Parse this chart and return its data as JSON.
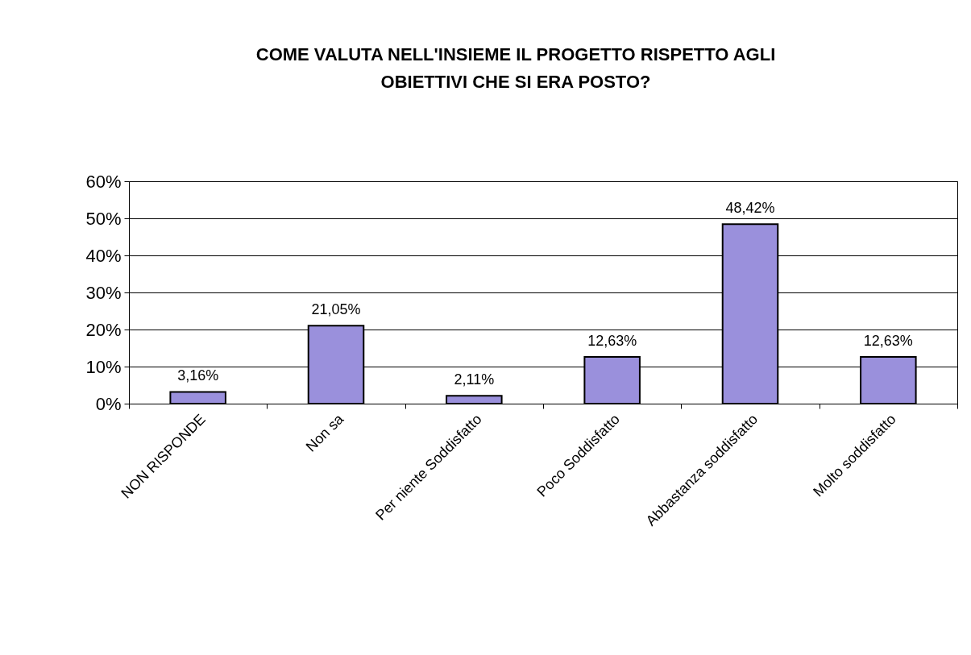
{
  "chart_data": {
    "type": "bar",
    "title": "COME VALUTA NELL'INSIEME IL PROGETTO RISPETTO AGLI\nOBIETTIVI CHE SI ERA POSTO?",
    "categories": [
      "NON RISPONDE",
      "Non sa",
      "Per niente Soddisfatto",
      "Poco Soddisfatto",
      "Abbastanza soddisfatto",
      "Molto soddisfatto"
    ],
    "values": [
      3.16,
      21.05,
      2.11,
      12.63,
      48.42,
      12.63
    ],
    "value_labels": [
      "3,16%",
      "21,05%",
      "2,11%",
      "12,63%",
      "48,42%",
      "12,63%"
    ],
    "color": "#9a90dc",
    "ylim": [
      0,
      60
    ],
    "yticks": [
      {
        "value": 0,
        "label": "0%"
      },
      {
        "value": 10,
        "label": "10%"
      },
      {
        "value": 20,
        "label": "20%"
      },
      {
        "value": 30,
        "label": "30%"
      },
      {
        "value": 40,
        "label": "40%"
      },
      {
        "value": 50,
        "label": "50%"
      },
      {
        "value": 60,
        "label": "60%"
      }
    ],
    "grid": "y"
  }
}
